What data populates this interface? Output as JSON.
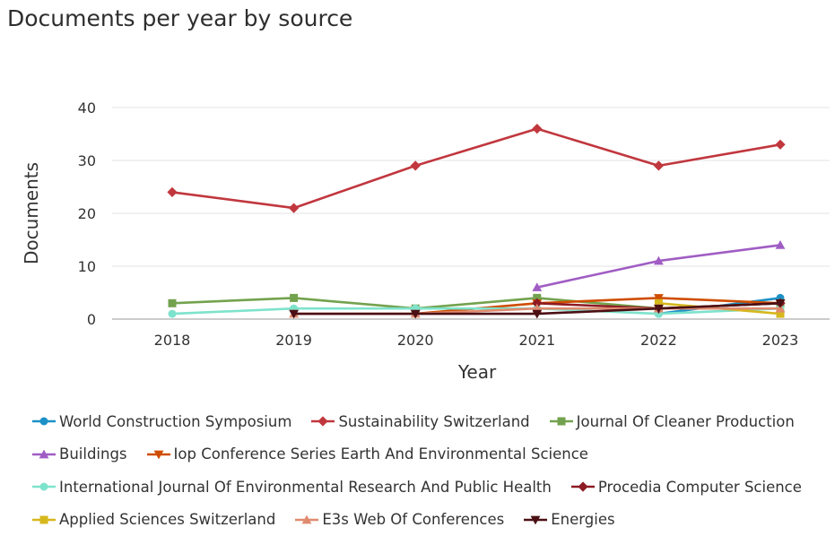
{
  "title": "Documents per year by source",
  "chart_data": {
    "type": "line",
    "x": [
      "2018",
      "2019",
      "2020",
      "2021",
      "2022",
      "2023"
    ],
    "xlabel": "Year",
    "ylabel": "Documents",
    "ylim": [
      0,
      40
    ],
    "yticks": [
      "0",
      "10",
      "20",
      "30",
      "40"
    ],
    "grid": true,
    "legend_position": "bottom",
    "series": [
      {
        "name": "World Construction Symposium",
        "color": "#1c91c7",
        "marker": "circle",
        "values": [
          null,
          null,
          null,
          null,
          1,
          4
        ]
      },
      {
        "name": "Sustainability Switzerland",
        "color": "#c1373e",
        "marker": "diamond",
        "values": [
          24,
          21,
          29,
          36,
          29,
          33
        ]
      },
      {
        "name": "Journal Of Cleaner Production",
        "color": "#73a24e",
        "marker": "square",
        "values": [
          3,
          4,
          2,
          4,
          2,
          3
        ]
      },
      {
        "name": "Buildings",
        "color": "#a05dc4",
        "marker": "triangle-up",
        "values": [
          null,
          null,
          null,
          6,
          11,
          14
        ]
      },
      {
        "name": "Iop Conference Series Earth And Environmental Science",
        "color": "#d04d00",
        "marker": "triangle-down",
        "values": [
          null,
          null,
          1,
          3,
          4,
          3
        ]
      },
      {
        "name": "International Journal Of Environmental Research And Public Health",
        "color": "#7ee3cc",
        "marker": "circle",
        "values": [
          1,
          2,
          2,
          2,
          1,
          2
        ]
      },
      {
        "name": "Procedia Computer Science",
        "color": "#8e1b23",
        "marker": "diamond",
        "values": [
          null,
          null,
          null,
          3,
          2,
          3
        ]
      },
      {
        "name": "Applied Sciences Switzerland",
        "color": "#d6b71d",
        "marker": "square",
        "values": [
          null,
          null,
          null,
          null,
          3,
          1
        ]
      },
      {
        "name": "E3s Web Of Conferences",
        "color": "#e08a6f",
        "marker": "triangle-up",
        "values": [
          null,
          1,
          1,
          2,
          2,
          2
        ]
      },
      {
        "name": "Energies",
        "color": "#4b0f14",
        "marker": "triangle-down",
        "values": [
          null,
          1,
          1,
          1,
          2,
          3
        ]
      }
    ]
  }
}
